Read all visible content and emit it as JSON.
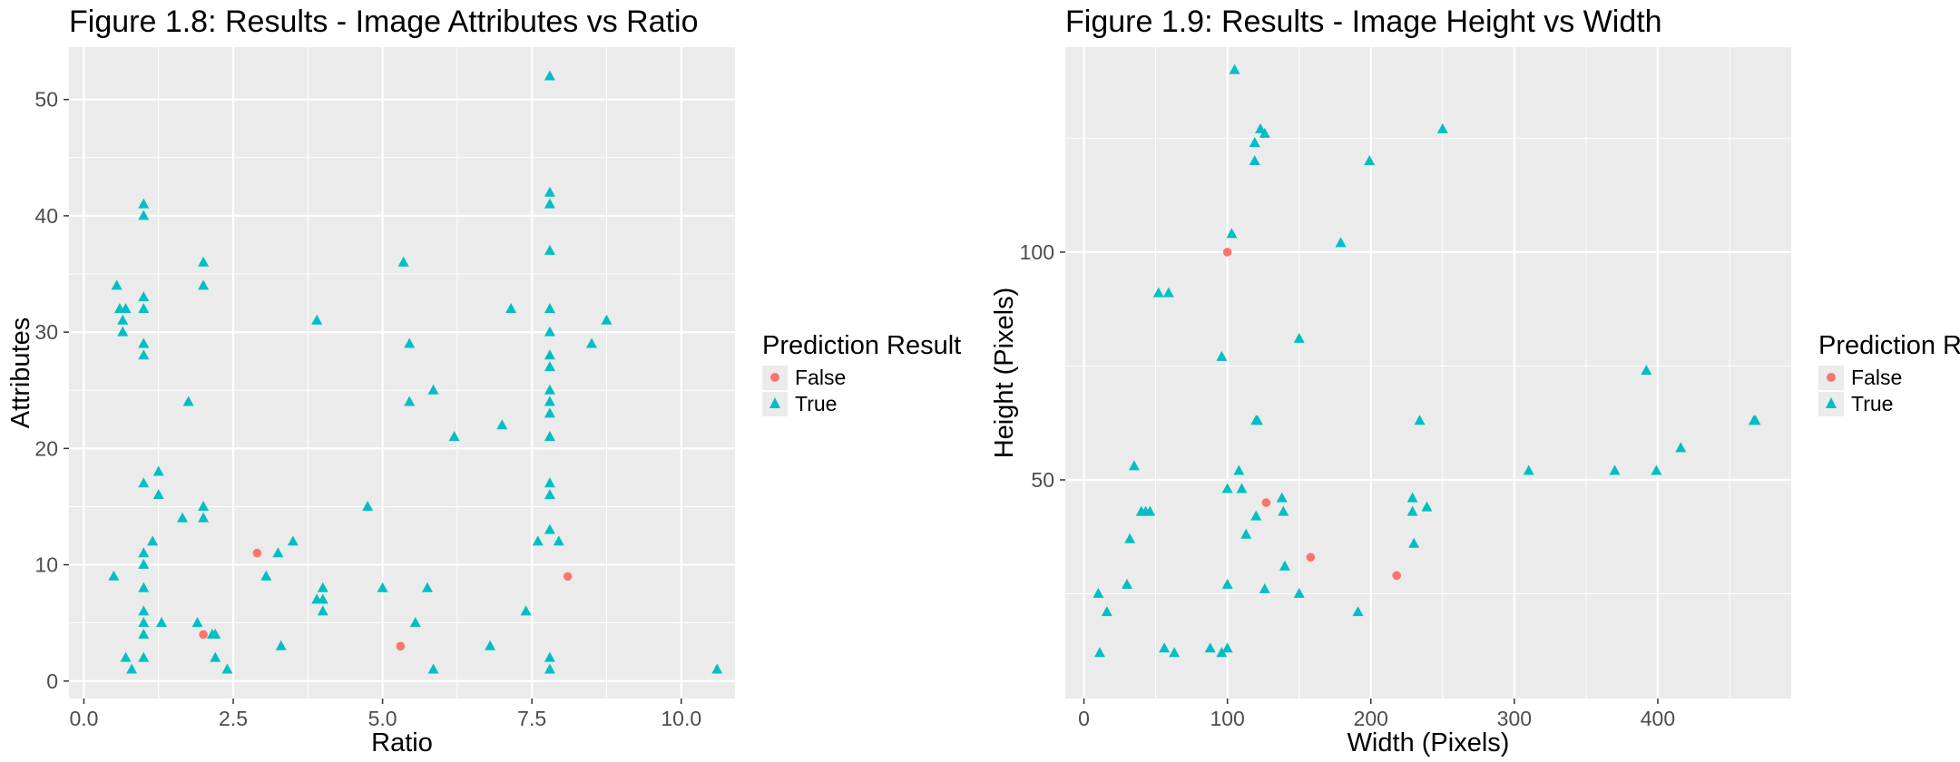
{
  "charts": [
    {
      "title": "Figure 1.8: Results - Image Attributes vs Ratio",
      "xlabel": "Ratio",
      "ylabel": "Attributes",
      "xlim": [
        -0.25,
        10.9
      ],
      "ylim": [
        -1.5,
        54.5
      ],
      "xticks": [
        0,
        2.5,
        5,
        7.5,
        10
      ],
      "xtick_labels": [
        "0.0",
        "2.5",
        "5.0",
        "7.5",
        "10.0"
      ],
      "yticks": [
        0,
        10,
        20,
        30,
        40,
        50
      ],
      "ytick_labels": [
        "0",
        "10",
        "20",
        "30",
        "40",
        "50"
      ]
    },
    {
      "title": "Figure 1.9: Results - Image Height vs Width",
      "xlabel": "Width (Pixels)",
      "ylabel": "Height (Pixels)",
      "xlim": [
        -13,
        493
      ],
      "ylim": [
        2,
        145
      ],
      "xticks": [
        0,
        100,
        200,
        300,
        400
      ],
      "xtick_labels": [
        "0",
        "100",
        "200",
        "300",
        "400"
      ],
      "yticks": [
        50,
        100
      ],
      "ytick_labels": [
        "50",
        "100"
      ]
    }
  ],
  "legend": {
    "title": "Prediction Result",
    "items": [
      {
        "label": "False",
        "shape": "circle",
        "color": "#F8766D"
      },
      {
        "label": "True",
        "shape": "triangle",
        "color": "#00BFC4"
      }
    ]
  },
  "colors": {
    "panel_bg": "#EBEBEB",
    "grid": "#FFFFFF",
    "false": "#F8766D",
    "true": "#00BFC4"
  },
  "chart_data": [
    {
      "type": "scatter",
      "title": "Figure 1.8: Results - Image Attributes vs Ratio",
      "xlabel": "Ratio",
      "ylabel": "Attributes",
      "xlim": [
        -0.25,
        10.9
      ],
      "ylim": [
        -1.5,
        54.5
      ],
      "grid": true,
      "legend_position": "right",
      "series": [
        {
          "name": "False",
          "points": [
            [
              2.9,
              11
            ],
            [
              2.0,
              4
            ],
            [
              5.3,
              3
            ],
            [
              8.1,
              9
            ]
          ]
        },
        {
          "name": "True",
          "points": [
            [
              0.5,
              9
            ],
            [
              0.55,
              34
            ],
            [
              0.6,
              32
            ],
            [
              0.65,
              31
            ],
            [
              0.65,
              30
            ],
            [
              0.7,
              32
            ],
            [
              0.7,
              2
            ],
            [
              0.8,
              1
            ],
            [
              1.0,
              41
            ],
            [
              1.0,
              40
            ],
            [
              1.0,
              33
            ],
            [
              1.0,
              32
            ],
            [
              1.0,
              29
            ],
            [
              1.0,
              28
            ],
            [
              1.0,
              17
            ],
            [
              1.0,
              11
            ],
            [
              1.0,
              10
            ],
            [
              1.0,
              8
            ],
            [
              1.0,
              6
            ],
            [
              1.0,
              5
            ],
            [
              1.0,
              4
            ],
            [
              1.0,
              2
            ],
            [
              1.15,
              12
            ],
            [
              1.25,
              18
            ],
            [
              1.25,
              16
            ],
            [
              1.3,
              5
            ],
            [
              1.65,
              14
            ],
            [
              1.75,
              24
            ],
            [
              1.9,
              5
            ],
            [
              2.0,
              36
            ],
            [
              2.0,
              34
            ],
            [
              2.0,
              15
            ],
            [
              2.0,
              14
            ],
            [
              2.15,
              4
            ],
            [
              2.2,
              4
            ],
            [
              2.2,
              2
            ],
            [
              2.4,
              1
            ],
            [
              3.05,
              9
            ],
            [
              3.25,
              11
            ],
            [
              3.3,
              3
            ],
            [
              3.5,
              12
            ],
            [
              3.9,
              31
            ],
            [
              3.9,
              7
            ],
            [
              4.0,
              7
            ],
            [
              4.0,
              8
            ],
            [
              4.0,
              6
            ],
            [
              4.75,
              15
            ],
            [
              5.0,
              8
            ],
            [
              5.35,
              36
            ],
            [
              5.45,
              29
            ],
            [
              5.45,
              24
            ],
            [
              5.55,
              5
            ],
            [
              5.75,
              8
            ],
            [
              5.85,
              25
            ],
            [
              5.85,
              1
            ],
            [
              6.2,
              21
            ],
            [
              6.8,
              3
            ],
            [
              7.0,
              22
            ],
            [
              7.15,
              32
            ],
            [
              7.4,
              6
            ],
            [
              7.6,
              12
            ],
            [
              7.8,
              52
            ],
            [
              7.8,
              42
            ],
            [
              7.8,
              41
            ],
            [
              7.8,
              37
            ],
            [
              7.8,
              32
            ],
            [
              7.8,
              30
            ],
            [
              7.8,
              28
            ],
            [
              7.8,
              27
            ],
            [
              7.8,
              25
            ],
            [
              7.8,
              24
            ],
            [
              7.8,
              23
            ],
            [
              7.8,
              21
            ],
            [
              7.8,
              17
            ],
            [
              7.8,
              16
            ],
            [
              7.8,
              13
            ],
            [
              7.8,
              2
            ],
            [
              7.8,
              1
            ],
            [
              7.95,
              12
            ],
            [
              8.5,
              29
            ],
            [
              8.75,
              31
            ],
            [
              10.6,
              1
            ]
          ]
        }
      ]
    },
    {
      "type": "scatter",
      "title": "Figure 1.9: Results - Image Height vs Width",
      "xlabel": "Width (Pixels)",
      "ylabel": "Height (Pixels)",
      "xlim": [
        -13,
        493
      ],
      "ylim": [
        2,
        145
      ],
      "grid": true,
      "legend_position": "right",
      "series": [
        {
          "name": "False",
          "points": [
            [
              100,
              100
            ],
            [
              127,
              45
            ],
            [
              158,
              33
            ],
            [
              218,
              29
            ]
          ]
        },
        {
          "name": "True",
          "points": [
            [
              10,
              25
            ],
            [
              11,
              12
            ],
            [
              16,
              21
            ],
            [
              30,
              27
            ],
            [
              32,
              37
            ],
            [
              35,
              53
            ],
            [
              40,
              43
            ],
            [
              43,
              43
            ],
            [
              46,
              43
            ],
            [
              52,
              91
            ],
            [
              59,
              91
            ],
            [
              56,
              13
            ],
            [
              63,
              12
            ],
            [
              88,
              13
            ],
            [
              96,
              77
            ],
            [
              96,
              12
            ],
            [
              100,
              27
            ],
            [
              100,
              48
            ],
            [
              100,
              13
            ],
            [
              103,
              104
            ],
            [
              105,
              140
            ],
            [
              108,
              52
            ],
            [
              110,
              48
            ],
            [
              113,
              38
            ],
            [
              119,
              124
            ],
            [
              119,
              120
            ],
            [
              120,
              42
            ],
            [
              120,
              63
            ],
            [
              121,
              63
            ],
            [
              123,
              127
            ],
            [
              126,
              126
            ],
            [
              126,
              26
            ],
            [
              138,
              46
            ],
            [
              139,
              43
            ],
            [
              140,
              31
            ],
            [
              150,
              25
            ],
            [
              150,
              81
            ],
            [
              179,
              102
            ],
            [
              191,
              21
            ],
            [
              199,
              120
            ],
            [
              229,
              46
            ],
            [
              229,
              43
            ],
            [
              230,
              36
            ],
            [
              234,
              63
            ],
            [
              239,
              44
            ],
            [
              250,
              127
            ],
            [
              310,
              52
            ],
            [
              370,
              52
            ],
            [
              392,
              74
            ],
            [
              399,
              52
            ],
            [
              416,
              57
            ],
            [
              467,
              63
            ],
            [
              468,
              63
            ]
          ]
        }
      ]
    }
  ]
}
